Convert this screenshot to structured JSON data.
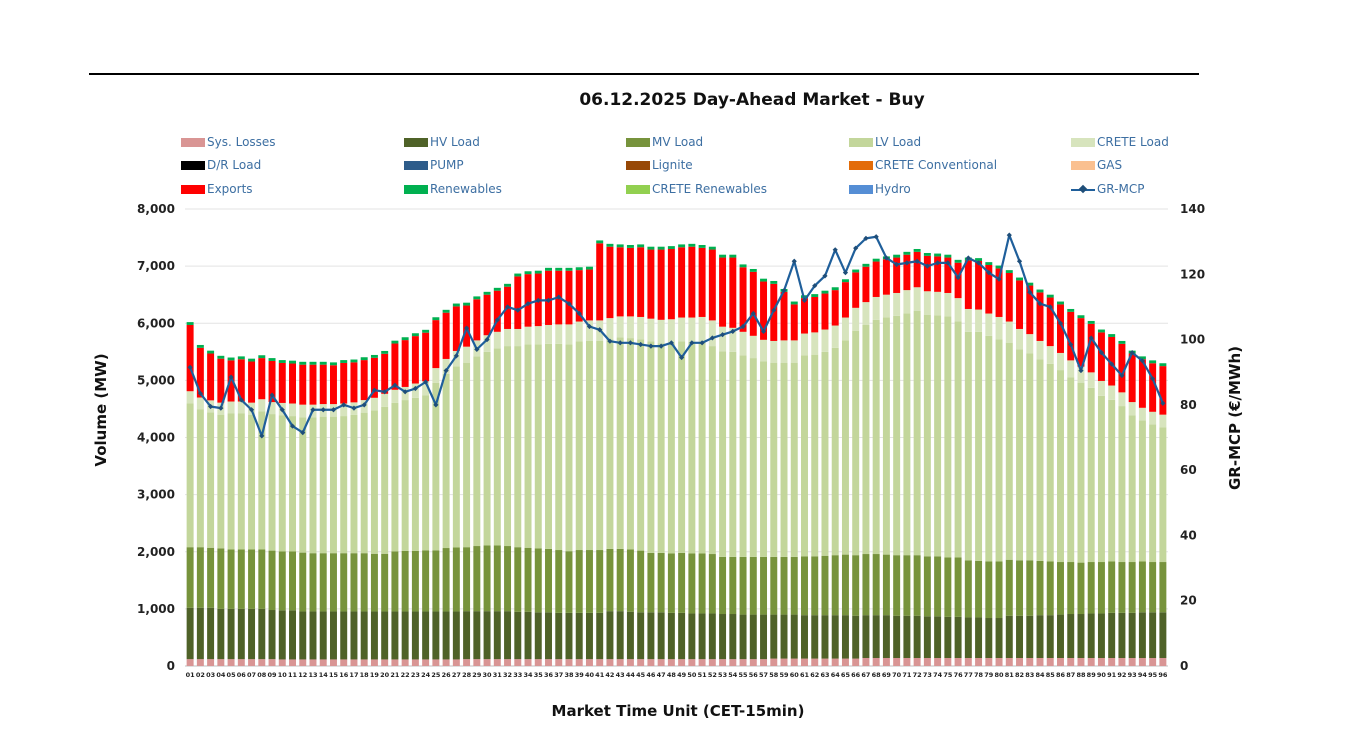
{
  "chart_data": {
    "type": "bar",
    "title": "06.12.2025  Day-Ahead Market - Buy",
    "xlabel": "Market Time Unit (CET-15min)",
    "ylabel": "Volume (MW)",
    "y2label": "GR-MCP (€/MWh)",
    "ylim": [
      0,
      8000
    ],
    "y2lim": [
      0,
      140
    ],
    "yticks": [
      "0",
      "1,000",
      "2,000",
      "3,000",
      "4,000",
      "5,000",
      "6,000",
      "7,000",
      "8,000"
    ],
    "y2ticks": [
      "0",
      "20",
      "40",
      "60",
      "80",
      "100",
      "120",
      "140"
    ],
    "categories": [
      "01",
      "02",
      "03",
      "04",
      "05",
      "06",
      "07",
      "08",
      "09",
      "10",
      "11",
      "12",
      "13",
      "14",
      "15",
      "16",
      "17",
      "18",
      "19",
      "20",
      "21",
      "22",
      "23",
      "24",
      "25",
      "26",
      "27",
      "28",
      "29",
      "30",
      "31",
      "32",
      "33",
      "34",
      "35",
      "36",
      "37",
      "38",
      "39",
      "40",
      "41",
      "42",
      "43",
      "44",
      "45",
      "46",
      "47",
      "48",
      "49",
      "50",
      "51",
      "52",
      "53",
      "54",
      "55",
      "56",
      "57",
      "58",
      "59",
      "60",
      "61",
      "62",
      "63",
      "64",
      "65",
      "66",
      "67",
      "68",
      "69",
      "70",
      "71",
      "72",
      "73",
      "74",
      "75",
      "76",
      "77",
      "78",
      "79",
      "80",
      "81",
      "82",
      "83",
      "84",
      "85",
      "86",
      "87",
      "88",
      "89",
      "90",
      "91",
      "92",
      "93",
      "94",
      "95",
      "96"
    ],
    "legend": [
      {
        "name": "Sys. Losses",
        "color": "#d99594"
      },
      {
        "name": "HV Load",
        "color": "#4f6228"
      },
      {
        "name": "MV Load",
        "color": "#77933c"
      },
      {
        "name": "LV Load",
        "color": "#c3d69b"
      },
      {
        "name": "CRETE Load",
        "color": "#d7e4bd"
      },
      {
        "name": "D/R Load",
        "color": "#000000"
      },
      {
        "name": "PUMP",
        "color": "#2e5c8a"
      },
      {
        "name": "Lignite",
        "color": "#974806"
      },
      {
        "name": "CRETE Conventional",
        "color": "#e36c09"
      },
      {
        "name": "GAS",
        "color": "#fac090"
      },
      {
        "name": "Exports",
        "color": "#ff0000"
      },
      {
        "name": "Renewables",
        "color": "#00b050"
      },
      {
        "name": "CRETE Renewables",
        "color": "#92d050"
      },
      {
        "name": "Hydro",
        "color": "#558ed5"
      },
      {
        "name": "GR-MCP",
        "color": "#1f5f9b"
      }
    ],
    "series": [
      {
        "name": "Sys. Losses",
        "values": [
          120,
          120,
          120,
          120,
          120,
          120,
          120,
          120,
          120,
          115,
          115,
          115,
          115,
          115,
          115,
          115,
          115,
          115,
          115,
          115,
          115,
          115,
          115,
          115,
          115,
          115,
          115,
          120,
          120,
          120,
          120,
          120,
          120,
          120,
          120,
          120,
          120,
          120,
          120,
          120,
          120,
          120,
          120,
          120,
          120,
          120,
          120,
          120,
          120,
          120,
          120,
          120,
          120,
          120,
          120,
          120,
          120,
          130,
          130,
          130,
          130,
          130,
          130,
          130,
          130,
          130,
          140,
          140,
          140,
          140,
          140,
          140,
          140,
          140,
          140,
          140,
          140,
          140,
          140,
          140,
          140,
          140,
          140,
          140,
          140,
          140,
          140,
          140,
          140,
          140,
          140,
          140,
          140,
          140,
          140,
          140
        ]
      },
      {
        "name": "HV Load",
        "values": [
          900,
          900,
          900,
          880,
          880,
          880,
          880,
          880,
          860,
          860,
          860,
          840,
          840,
          840,
          840,
          840,
          840,
          840,
          840,
          840,
          840,
          840,
          840,
          840,
          840,
          840,
          840,
          840,
          840,
          840,
          840,
          840,
          830,
          830,
          820,
          820,
          810,
          810,
          810,
          810,
          810,
          840,
          840,
          830,
          820,
          820,
          820,
          810,
          810,
          800,
          800,
          800,
          790,
          790,
          780,
          780,
          780,
          770,
          770,
          770,
          760,
          760,
          760,
          760,
          760,
          750,
          750,
          750,
          750,
          740,
          740,
          740,
          730,
          730,
          720,
          720,
          710,
          710,
          700,
          700,
          740,
          740,
          740,
          750,
          750,
          760,
          770,
          770,
          780,
          780,
          790,
          790,
          790,
          800,
          800,
          800
        ]
      },
      {
        "name": "MV Load",
        "values": [
          1060,
          1060,
          1050,
          1060,
          1040,
          1040,
          1040,
          1040,
          1040,
          1030,
          1030,
          1030,
          1020,
          1020,
          1020,
          1020,
          1020,
          1020,
          1010,
          1010,
          1050,
          1060,
          1060,
          1070,
          1070,
          1110,
          1120,
          1120,
          1140,
          1150,
          1150,
          1140,
          1130,
          1120,
          1120,
          1110,
          1100,
          1080,
          1100,
          1100,
          1100,
          1090,
          1090,
          1090,
          1080,
          1040,
          1040,
          1040,
          1050,
          1050,
          1050,
          1040,
          1000,
          1000,
          1010,
          1010,
          1010,
          1010,
          1010,
          1010,
          1030,
          1030,
          1040,
          1050,
          1060,
          1060,
          1070,
          1070,
          1060,
          1060,
          1060,
          1060,
          1050,
          1050,
          1040,
          1040,
          1000,
          990,
          990,
          990,
          980,
          970,
          970,
          950,
          940,
          920,
          910,
          900,
          900,
          900,
          900,
          890,
          890,
          890,
          880,
          880
        ]
      },
      {
        "name": "LV Load",
        "values": [
          2520,
          2410,
          2370,
          2340,
          2380,
          2380,
          2360,
          2420,
          2390,
          2380,
          2370,
          2370,
          2380,
          2390,
          2390,
          2400,
          2420,
          2460,
          2510,
          2570,
          2600,
          2640,
          2680,
          2710,
          2930,
          3050,
          3170,
          3230,
          3320,
          3390,
          3450,
          3500,
          3520,
          3560,
          3570,
          3590,
          3610,
          3620,
          3650,
          3660,
          3660,
          3670,
          3700,
          3700,
          3700,
          3700,
          3670,
          3680,
          3700,
          3700,
          3700,
          3640,
          3600,
          3590,
          3530,
          3480,
          3420,
          3400,
          3400,
          3400,
          3520,
          3530,
          3570,
          3630,
          3750,
          3930,
          4010,
          4100,
          4150,
          4190,
          4230,
          4280,
          4230,
          4220,
          4220,
          4130,
          4000,
          4010,
          3950,
          3890,
          3800,
          3690,
          3620,
          3530,
          3460,
          3360,
          3230,
          3150,
          3050,
          2910,
          2830,
          2730,
          2570,
          2470,
          2410,
          2360
        ]
      },
      {
        "name": "CRETE Load",
        "values": [
          210,
          210,
          210,
          210,
          210,
          210,
          210,
          210,
          210,
          220,
          220,
          220,
          220,
          220,
          220,
          220,
          220,
          220,
          220,
          230,
          230,
          230,
          250,
          250,
          260,
          260,
          270,
          280,
          280,
          290,
          290,
          300,
          300,
          310,
          320,
          330,
          340,
          350,
          350,
          360,
          360,
          370,
          370,
          380,
          390,
          400,
          410,
          420,
          420,
          430,
          440,
          450,
          430,
          420,
          410,
          390,
          380,
          380,
          390,
          390,
          380,
          390,
          390,
          390,
          400,
          400,
          400,
          400,
          400,
          400,
          410,
          410,
          410,
          410,
          410,
          410,
          400,
          390,
          390,
          390,
          370,
          360,
          340,
          320,
          310,
          300,
          300,
          280,
          270,
          260,
          250,
          240,
          230,
          220,
          220,
          220
        ]
      },
      {
        "name": "Exports",
        "values": [
          1160,
          870,
          820,
          770,
          720,
          740,
          720,
          720,
          720,
          700,
          700,
          700,
          700,
          690,
          680,
          710,
          700,
          700,
          700,
          700,
          810,
          820,
          830,
          850,
          840,
          810,
          780,
          720,
          720,
          710,
          720,
          740,
          920,
          920,
          920,
          950,
          940,
          940,
          900,
          890,
          1350,
          1250,
          1210,
          1200,
          1220,
          1210,
          1230,
          1230,
          1230,
          1240,
          1210,
          1240,
          1210,
          1230,
          1130,
          1120,
          1020,
          1000,
          850,
          630,
          620,
          620,
          630,
          620,
          620,
          620,
          620,
          620,
          620,
          620,
          620,
          620,
          620,
          620,
          620,
          620,
          850,
          850,
          850,
          850,
          850,
          850,
          850,
          850,
          850,
          850,
          850,
          850,
          850,
          850,
          850,
          850,
          850,
          850,
          850,
          850
        ]
      },
      {
        "name": "Renewables",
        "values": [
          50,
          50,
          50,
          50,
          50,
          50,
          50,
          50,
          50,
          50,
          50,
          50,
          50,
          50,
          50,
          50,
          50,
          50,
          50,
          50,
          50,
          50,
          50,
          50,
          50,
          50,
          50,
          50,
          50,
          50,
          50,
          50,
          50,
          50,
          50,
          50,
          50,
          50,
          50,
          50,
          50,
          50,
          50,
          50,
          50,
          50,
          50,
          50,
          50,
          50,
          50,
          50,
          50,
          50,
          50,
          50,
          50,
          50,
          50,
          50,
          50,
          50,
          50,
          50,
          50,
          50,
          50,
          50,
          50,
          50,
          50,
          50,
          50,
          50,
          50,
          50,
          50,
          50,
          50,
          50,
          50,
          50,
          50,
          50,
          50,
          50,
          50,
          50,
          50,
          50,
          50,
          50,
          50,
          50,
          50,
          50
        ]
      },
      {
        "name": "GR-MCP",
        "axis": "right",
        "values": [
          91.5,
          83.5,
          79.5,
          79,
          88.5,
          81.5,
          78.5,
          70.5,
          83,
          78.5,
          73.5,
          71.5,
          78.5,
          78.5,
          78.5,
          80,
          79,
          80,
          84.5,
          84,
          86,
          84,
          85,
          87,
          80,
          90.5,
          95,
          103.5,
          97,
          100,
          106,
          110,
          109,
          111,
          112,
          112,
          113,
          111,
          108,
          104,
          103,
          99.5,
          99,
          99,
          98.5,
          98,
          98,
          99,
          94.5,
          99,
          99,
          100.5,
          101.5,
          102.5,
          104,
          108,
          102.5,
          109,
          115,
          124,
          112,
          116.5,
          119.5,
          127.5,
          120.5,
          128,
          131,
          131.5,
          125,
          123,
          123.5,
          124,
          122.5,
          123.5,
          123.5,
          119,
          125,
          123.5,
          120.5,
          118.5,
          132,
          124,
          114.5,
          111,
          110,
          105,
          98.5,
          90.5,
          100.5,
          96,
          92.5,
          89,
          96,
          93.5,
          88,
          80.5
        ]
      }
    ]
  }
}
